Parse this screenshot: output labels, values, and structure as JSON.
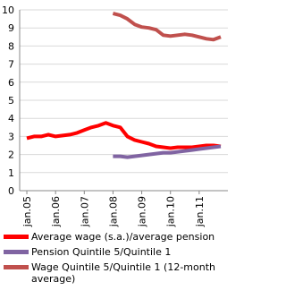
{
  "chart_data": {
    "type": "line",
    "x": [
      "2005-01",
      "2005-04",
      "2005-07",
      "2005-10",
      "2006-01",
      "2006-04",
      "2006-07",
      "2006-10",
      "2007-01",
      "2007-04",
      "2007-07",
      "2007-10",
      "2008-01",
      "2008-04",
      "2008-07",
      "2008-10",
      "2009-01",
      "2009-04",
      "2009-07",
      "2009-10",
      "2010-01",
      "2010-04",
      "2010-07",
      "2010-10",
      "2011-01",
      "2011-04",
      "2011-07",
      "2011-10"
    ],
    "xlim": [
      "2004-10",
      "2012-01"
    ],
    "xticks": [
      {
        "value": "2005-01",
        "label": "jan.05"
      },
      {
        "value": "2006-01",
        "label": "jan.06"
      },
      {
        "value": "2007-01",
        "label": "jan.07"
      },
      {
        "value": "2008-01",
        "label": "jan.08"
      },
      {
        "value": "2009-01",
        "label": "jan.09"
      },
      {
        "value": "2010-01",
        "label": "jan.10"
      },
      {
        "value": "2011-01",
        "label": "jan.11"
      }
    ],
    "ylim": [
      0,
      10
    ],
    "yticks": [
      0,
      1,
      2,
      3,
      4,
      5,
      6,
      7,
      8,
      9,
      10
    ],
    "grid": true,
    "series": [
      {
        "name": "Average wage (s.a.)/average pension",
        "color": "#ff0000",
        "values": [
          2.9,
          3.0,
          3.0,
          3.1,
          3.0,
          3.05,
          3.1,
          3.2,
          3.35,
          3.5,
          3.6,
          3.75,
          3.6,
          3.5,
          3.0,
          2.8,
          2.7,
          2.6,
          2.45,
          2.4,
          2.35,
          2.4,
          2.4,
          2.4,
          2.45,
          2.5,
          2.5,
          2.45
        ]
      },
      {
        "name": "Pension Quintile 5/Quintile 1",
        "color": "#8064a2",
        "values": [
          null,
          null,
          null,
          null,
          null,
          null,
          null,
          null,
          null,
          null,
          null,
          null,
          1.9,
          1.9,
          1.85,
          1.9,
          1.95,
          2.0,
          2.05,
          2.1,
          2.1,
          2.15,
          2.2,
          2.25,
          2.3,
          2.35,
          2.4,
          2.45
        ]
      },
      {
        "name": "Wage Quintile 5/Quintile 1 (12-month average)",
        "color": "#c0504d",
        "values": [
          null,
          null,
          null,
          null,
          null,
          null,
          null,
          null,
          null,
          null,
          null,
          null,
          9.8,
          9.7,
          9.5,
          9.2,
          9.05,
          9.0,
          8.9,
          8.6,
          8.55,
          8.6,
          8.65,
          8.6,
          8.5,
          8.4,
          8.35,
          8.5
        ]
      }
    ]
  }
}
